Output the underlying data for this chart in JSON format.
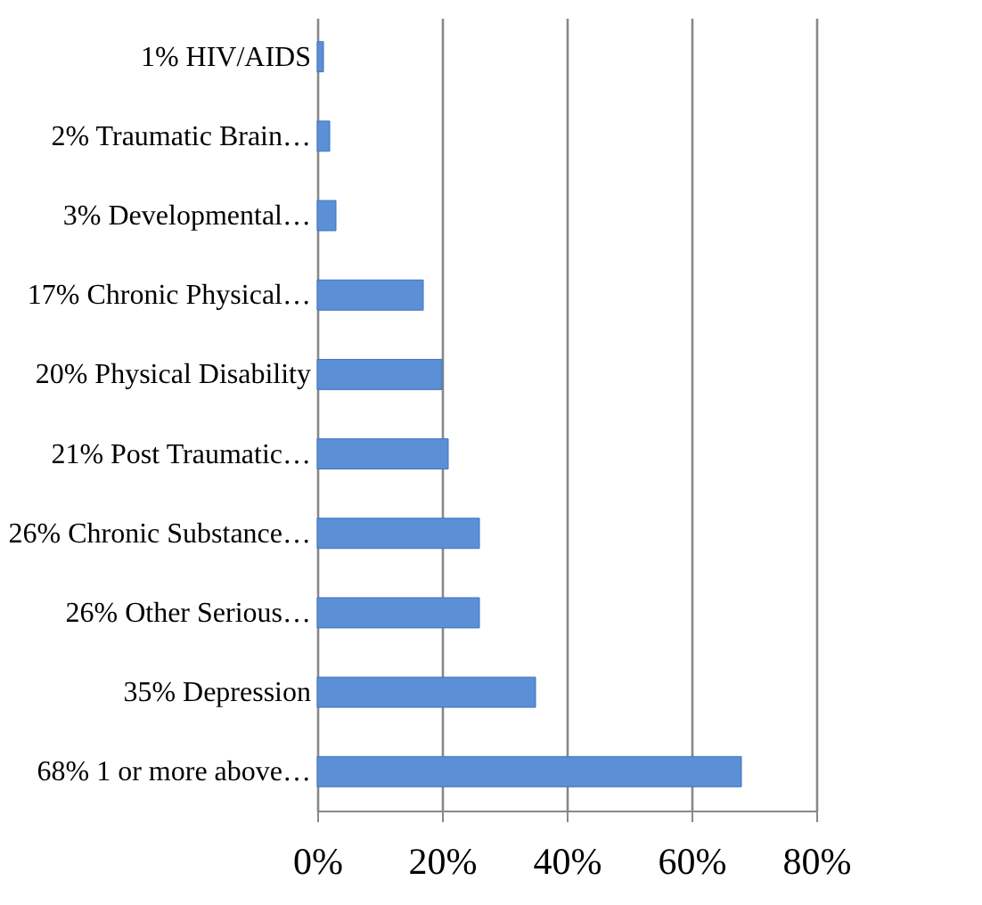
{
  "chart_data": {
    "type": "bar",
    "orientation": "horizontal",
    "categories": [
      "1% HIV/AIDS",
      "2% Traumatic Brain…",
      "3% Developmental…",
      "17% Chronic Physical…",
      "20% Physical Disability",
      "21% Post Traumatic…",
      "26% Chronic Substance…",
      "26% Other Serious…",
      "35% Depression",
      "68% 1 or more above…"
    ],
    "values": [
      1,
      2,
      3,
      17,
      20,
      21,
      26,
      26,
      35,
      68
    ],
    "color": "#5b8fd6",
    "xlim": [
      0,
      80
    ],
    "xticks": [
      {
        "value": 0,
        "label": "0%"
      },
      {
        "value": 20,
        "label": "20%"
      },
      {
        "value": 40,
        "label": "40%"
      },
      {
        "value": 60,
        "label": "60%"
      },
      {
        "value": 80,
        "label": "80%"
      }
    ],
    "grid": "x"
  }
}
